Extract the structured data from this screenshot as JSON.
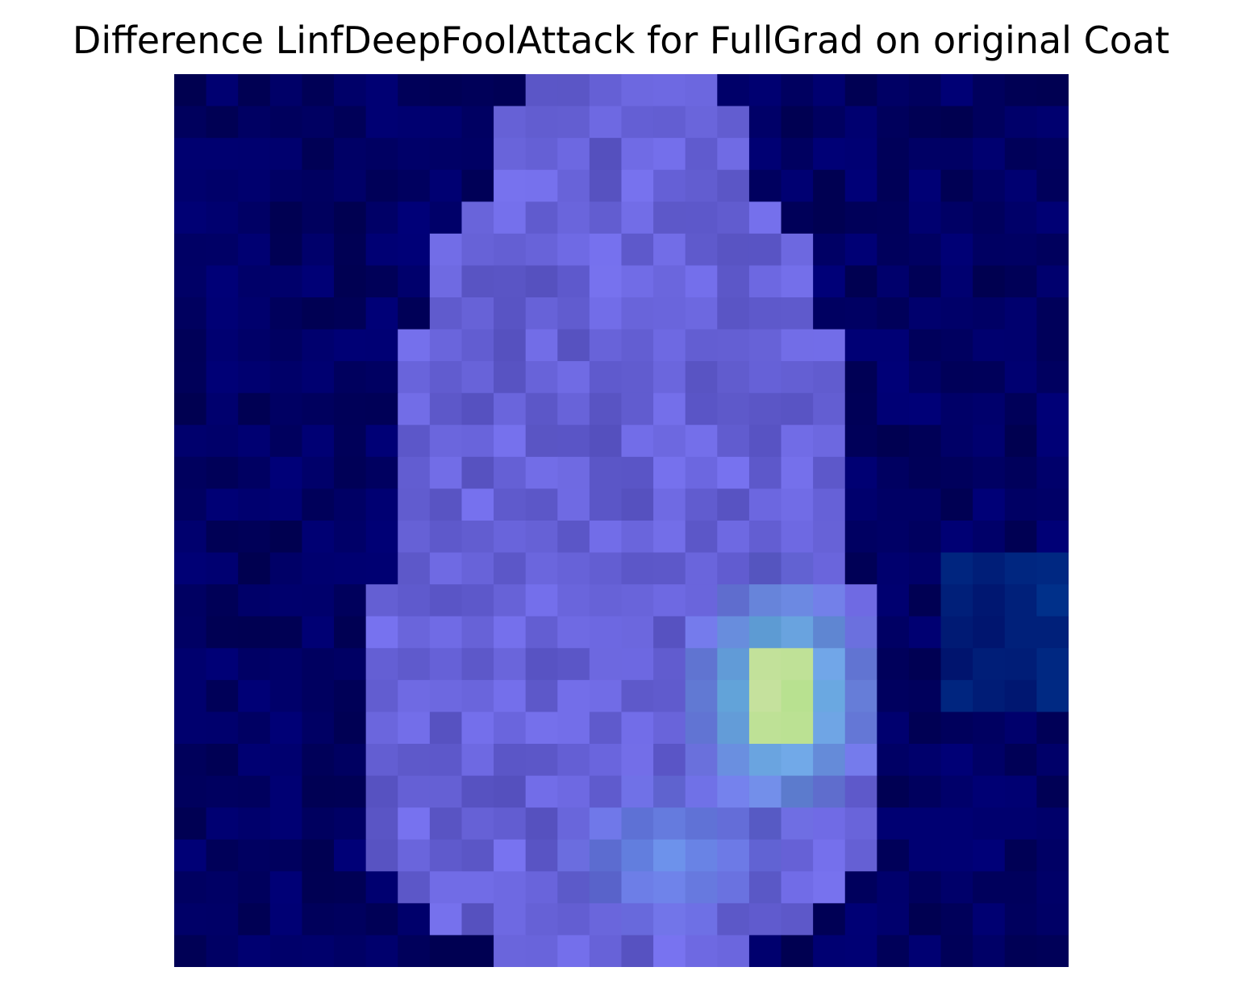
{
  "title": "Difference LinfDeepFoolAttack for FullGrad on original Coat",
  "heatmap": {
    "rows": 28,
    "cols": 28,
    "colors": {
      "background": "#00005a",
      "deep": "#000040",
      "coat_body": "#6a6ad0",
      "highlight_cyan": "#5ee0e0",
      "highlight_yellow": "#c0e080"
    }
  }
}
